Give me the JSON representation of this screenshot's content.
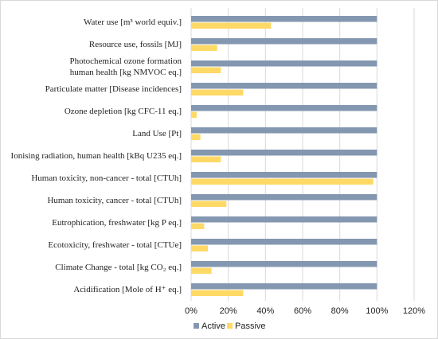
{
  "chart_data": {
    "type": "hbar",
    "categories": [
      "Water use [m³ world equiv.]",
      "Resource use, fossils [MJ]",
      "Photochemical ozone formation\nhuman health [kg NMVOC eq.]",
      "Particulate matter [Disease incidences]",
      "Ozone depletion [kg CFC-11 eq.]",
      "Land Use [Pt]",
      "Ionising radiation, human health [kBq U235 eq.]",
      "Human toxicity, non-cancer - total [CTUh]",
      "Human toxicity, cancer - total [CTUh]",
      "Eutrophication, freshwater [kg P eq.]",
      "Ecotoxicity, freshwater - total [CTUe]",
      "Climate Change - total [kg CO₂ eq.]",
      "Acidification [Mole of H⁺ eq.]"
    ],
    "series": [
      {
        "name": "Active",
        "color": "#8497b0",
        "values": [
          100,
          100,
          100,
          100,
          100,
          100,
          100,
          100,
          100,
          100,
          100,
          100,
          100
        ]
      },
      {
        "name": "Passive",
        "color": "#ffd966",
        "values": [
          43,
          14,
          16,
          28,
          3,
          5,
          16,
          98,
          19,
          7,
          9,
          11,
          28
        ]
      }
    ],
    "xlim": [
      0,
      120
    ],
    "xticks": [
      {
        "value": 0,
        "label": "0%"
      },
      {
        "value": 20,
        "label": "20%"
      },
      {
        "value": 40,
        "label": "40%"
      },
      {
        "value": 60,
        "label": "60%"
      },
      {
        "value": 80,
        "label": "80%"
      },
      {
        "value": 100,
        "label": "100%"
      },
      {
        "value": 120,
        "label": "120%"
      }
    ],
    "grid": true,
    "legend": "bottom"
  }
}
